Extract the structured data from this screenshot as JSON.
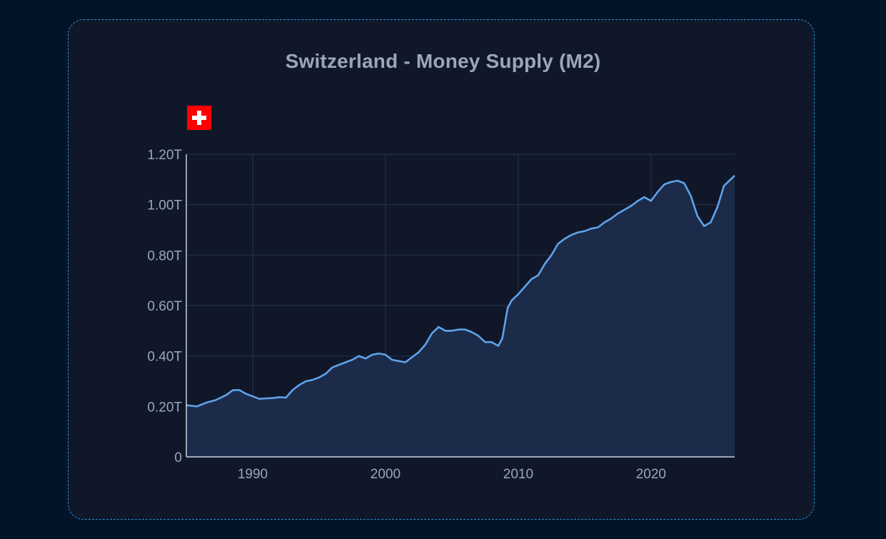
{
  "title": "Switzerland - Money Supply (M2)",
  "flag_icon": "switzerland-flag-icon",
  "colors": {
    "background": "#031428",
    "card": "#0f1729",
    "card_border": "#2b8fd6",
    "line": "#5fa3ea",
    "area": "#1c2b4a",
    "grid": "#22314a",
    "axis": "#c9d2df",
    "text": "#9aa7bb",
    "flag_red": "#ff0000"
  },
  "chart_data": {
    "type": "area",
    "title": "Switzerland - Money Supply (M2)",
    "xlabel": "",
    "ylabel": "",
    "xlim": [
      1985,
      2026.3
    ],
    "ylim": [
      0,
      1.2
    ],
    "y_unit": "T",
    "grid": true,
    "x_ticks": [
      {
        "value": 1990,
        "label": "1990"
      },
      {
        "value": 2000,
        "label": "2000"
      },
      {
        "value": 2010,
        "label": "2010"
      },
      {
        "value": 2020,
        "label": "2020"
      }
    ],
    "y_ticks": [
      {
        "value": 0,
        "label": "0"
      },
      {
        "value": 0.2,
        "label": "0.20T"
      },
      {
        "value": 0.4,
        "label": "0.40T"
      },
      {
        "value": 0.6,
        "label": "0.60T"
      },
      {
        "value": 0.8,
        "label": "0.80T"
      },
      {
        "value": 1.0,
        "label": "1.00T"
      },
      {
        "value": 1.2,
        "label": "1.20T"
      }
    ],
    "series": [
      {
        "x": [
          1985.0,
          1985.8,
          1986.5,
          1987.2,
          1988.0,
          1988.5,
          1989.0,
          1989.5,
          1990.0,
          1990.5,
          1991.0,
          1991.5,
          1992.0,
          1992.5,
          1993.0,
          1993.5,
          1994.0,
          1994.5,
          1995.0,
          1995.5,
          1996.0,
          1996.5,
          1997.0,
          1997.5,
          1998.0,
          1998.5,
          1999.0,
          1999.5,
          2000.0,
          2000.5,
          2001.0,
          2001.5,
          2002.0,
          2002.5,
          2003.0,
          2003.5,
          2004.0,
          2004.5,
          2005.0,
          2005.5,
          2006.0,
          2006.5,
          2007.0,
          2007.5,
          2008.0,
          2008.5,
          2008.8,
          2009.2,
          2009.5,
          2010.0,
          2010.5,
          2011.0,
          2011.5,
          2012.0,
          2012.5,
          2013.0,
          2013.5,
          2014.0,
          2014.5,
          2015.0,
          2015.5,
          2016.0,
          2016.5,
          2017.0,
          2017.5,
          2018.0,
          2018.5,
          2019.0,
          2019.5,
          2020.0,
          2020.5,
          2021.0,
          2021.5,
          2022.0,
          2022.5,
          2023.0,
          2023.5,
          2024.0,
          2024.5,
          2025.0,
          2025.5,
          2026.0,
          2026.3
        ],
        "values": [
          0.205,
          0.2,
          0.215,
          0.225,
          0.245,
          0.265,
          0.265,
          0.25,
          0.24,
          0.23,
          0.232,
          0.233,
          0.237,
          0.235,
          0.265,
          0.285,
          0.3,
          0.305,
          0.315,
          0.33,
          0.355,
          0.365,
          0.375,
          0.385,
          0.4,
          0.39,
          0.405,
          0.41,
          0.405,
          0.385,
          0.38,
          0.375,
          0.395,
          0.415,
          0.445,
          0.49,
          0.515,
          0.5,
          0.5,
          0.505,
          0.505,
          0.495,
          0.48,
          0.455,
          0.455,
          0.44,
          0.47,
          0.59,
          0.62,
          0.645,
          0.675,
          0.705,
          0.72,
          0.765,
          0.8,
          0.845,
          0.865,
          0.88,
          0.89,
          0.895,
          0.905,
          0.91,
          0.93,
          0.945,
          0.965,
          0.98,
          0.995,
          1.015,
          1.03,
          1.015,
          1.05,
          1.08,
          1.09,
          1.095,
          1.085,
          1.035,
          0.955,
          0.915,
          0.93,
          0.99,
          1.075,
          1.1,
          1.115
        ]
      }
    ]
  }
}
